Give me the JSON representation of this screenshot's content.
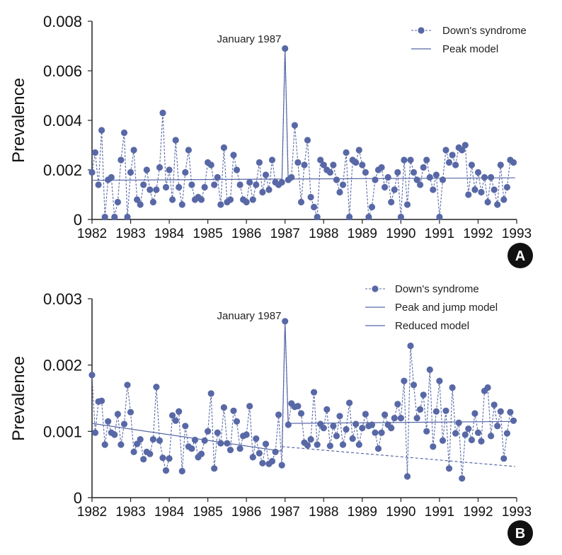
{
  "colors": {
    "series": "#5868a6",
    "axis": "#222222",
    "badge": "#111111"
  },
  "chart_data": [
    {
      "panel": "A",
      "type": "line",
      "ylabel": "Prevalence",
      "ylim": [
        0,
        0.008
      ],
      "yticks": [
        "0",
        "0.002",
        "0.004",
        "0.006",
        "0.008"
      ],
      "xlim": [
        1982,
        1993
      ],
      "xticks": [
        "1982",
        "1983",
        "1984",
        "1985",
        "1986",
        "1987",
        "1988",
        "1989",
        "1990",
        "1991",
        "1992",
        "1993"
      ],
      "annotation": {
        "text": "January 1987",
        "x": 1987.0,
        "y": 0.0069
      },
      "legend": {
        "placement": "top-right",
        "entries": [
          "Down's syndrome",
          "Peak model"
        ]
      },
      "series": [
        {
          "name": "Down's syndrome",
          "style": "dashed-with-markers",
          "values": [
            0.0019,
            0.0027,
            0.0014,
            0.0036,
            0.0001,
            0.0016,
            0.0017,
            0.0001,
            0.0007,
            0.0024,
            0.0035,
            0.0001,
            0.0019,
            0.0028,
            0.0008,
            0.0006,
            0.0014,
            0.002,
            0.0012,
            0.0007,
            0.0012,
            0.0021,
            0.0043,
            0.0013,
            0.002,
            0.0008,
            0.0032,
            0.0013,
            0.0006,
            0.0019,
            0.0028,
            0.0014,
            0.0008,
            0.0009,
            0.0008,
            0.0013,
            0.0023,
            0.0022,
            0.0014,
            0.0017,
            0.0006,
            0.0029,
            0.0007,
            0.0008,
            0.0026,
            0.002,
            0.0014,
            0.0008,
            0.0007,
            0.0015,
            0.0008,
            0.0014,
            0.0023,
            0.0011,
            0.0018,
            0.0012,
            0.0024,
            0.0015,
            0.0014,
            0.0015,
            0.0069,
            0.0016,
            0.0017,
            0.0038,
            0.0023,
            0.0007,
            0.0022,
            0.0032,
            0.0009,
            0.0005,
            0.0001,
            0.0024,
            0.0022,
            0.002,
            0.0019,
            0.0022,
            0.0016,
            0.0011,
            0.0014,
            0.0027,
            0.0001,
            0.0024,
            0.0023,
            0.0028,
            0.0022,
            0.0019,
            0.0001,
            0.0005,
            0.0016,
            0.002,
            0.0021,
            0.0013,
            0.0017,
            0.0007,
            0.0012,
            0.0019,
            0.0001,
            0.0024,
            0.0006,
            0.0024,
            0.0019,
            0.0016,
            0.0014,
            0.0021,
            0.0024,
            0.0017,
            0.0012,
            0.0018,
            0.0001,
            0.0016,
            0.0028,
            0.0023,
            0.0026,
            0.0022,
            0.0029,
            0.0028,
            0.003,
            0.001,
            0.0022,
            0.0012,
            0.0019,
            0.0011,
            0.0017,
            0.0007,
            0.0017,
            0.0012,
            0.0006,
            0.0022,
            0.0008,
            0.0013,
            0.0024,
            0.0023
          ]
        },
        {
          "name": "Peak model",
          "style": "solid",
          "points": [
            [
              1982.0,
              0.00158
            ],
            [
              1986.92,
              0.00163
            ],
            [
              1987.0,
              0.0069
            ],
            [
              1987.08,
              0.00163
            ],
            [
              1992.96,
              0.00168
            ]
          ]
        }
      ]
    },
    {
      "panel": "B",
      "type": "line",
      "ylabel": "Prevalence",
      "ylim": [
        0,
        0.003
      ],
      "yticks": [
        "0",
        "0.001",
        "0.002",
        "0.003"
      ],
      "xlim": [
        1982,
        1993
      ],
      "xticks": [
        "1982",
        "1983",
        "1984",
        "1985",
        "1986",
        "1987",
        "1988",
        "1989",
        "1990",
        "1991",
        "1992",
        "1993"
      ],
      "annotation": {
        "text": "January 1987",
        "x": 1987.0,
        "y": 0.00266
      },
      "legend": {
        "placement": "top-right",
        "entries": [
          "Down's syndrome",
          "Peak and jump model",
          "Reduced model"
        ]
      },
      "series": [
        {
          "name": "Down's syndrome",
          "style": "dashed-with-markers",
          "values": [
            0.00185,
            0.00098,
            0.00145,
            0.00146,
            0.0008,
            0.00115,
            0.00098,
            0.00095,
            0.00126,
            0.0008,
            0.00111,
            0.0017,
            0.00129,
            0.00069,
            0.00081,
            0.00088,
            0.00058,
            0.00069,
            0.00066,
            0.00088,
            0.00167,
            0.00086,
            0.0006,
            0.00041,
            0.00059,
            0.00124,
            0.00116,
            0.0013,
            0.0004,
            0.00108,
            0.00077,
            0.00074,
            0.00087,
            0.00061,
            0.00066,
            0.00086,
            0.001,
            0.00157,
            0.00044,
            0.00098,
            0.00082,
            0.00136,
            0.00082,
            0.00072,
            0.00131,
            0.00115,
            0.00074,
            0.00093,
            0.00095,
            0.00138,
            0.00061,
            0.00089,
            0.00067,
            0.00052,
            0.00081,
            0.00051,
            0.00055,
            0.00069,
            0.00125,
            0.00049,
            0.00266,
            0.0011,
            0.00142,
            0.00137,
            0.00138,
            0.00127,
            0.00083,
            0.00079,
            0.00088,
            0.00159,
            0.0008,
            0.00111,
            0.00105,
            0.00133,
            0.00078,
            0.00108,
            0.00093,
            0.00123,
            0.0008,
            0.00103,
            0.00143,
            0.00089,
            0.00111,
            0.0008,
            0.00105,
            0.00126,
            0.00108,
            0.0011,
            0.00098,
            0.00074,
            0.00098,
            0.00125,
            0.0011,
            0.00105,
            0.0012,
            0.00141,
            0.0012,
            0.00176,
            0.00032,
            0.00229,
            0.0017,
            0.0012,
            0.00133,
            0.00155,
            0.001,
            0.00193,
            0.00077,
            0.0013,
            0.00176,
            0.00086,
            0.00131,
            0.00044,
            0.00166,
            0.00097,
            0.00113,
            0.00029,
            0.00095,
            0.00104,
            0.00087,
            0.00127,
            0.00098,
            0.00085,
            0.00161,
            0.00166,
            0.00093,
            0.0014,
            0.00108,
            0.0013,
            0.00059,
            0.00097,
            0.00129,
            0.00116
          ]
        },
        {
          "name": "Peak and jump model",
          "style": "solid",
          "points": [
            [
              1982.0,
              0.00112
            ],
            [
              1986.92,
              0.0007
            ],
            [
              1987.0,
              0.00266
            ],
            [
              1987.08,
              0.00112
            ],
            [
              1992.96,
              0.00115
            ]
          ]
        },
        {
          "name": "Reduced model",
          "style": "dashed",
          "points": [
            [
              1986.92,
              0.00077
            ],
            [
              1992.96,
              0.00047
            ]
          ]
        }
      ]
    }
  ],
  "badges": [
    "A",
    "B"
  ]
}
